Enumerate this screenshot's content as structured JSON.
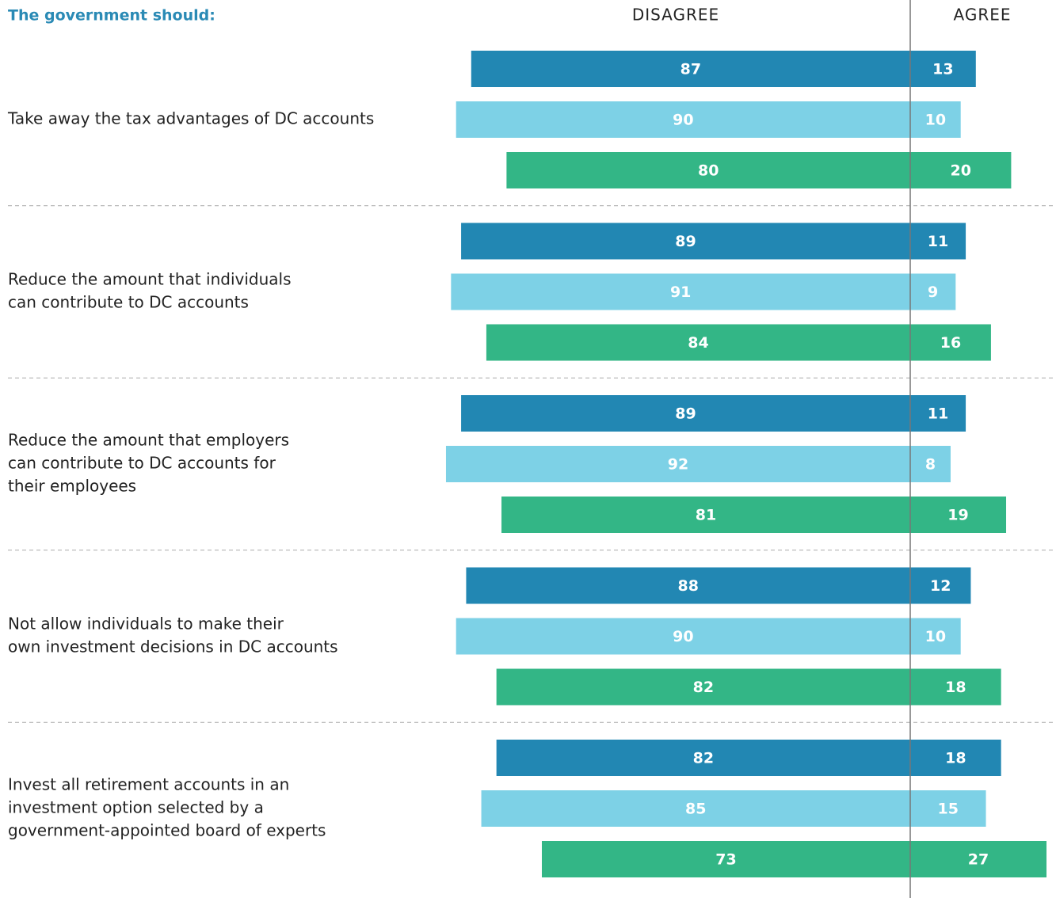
{
  "chart_data": {
    "type": "diverging_bar",
    "title": "The government should:",
    "left_label": "DISAGREE",
    "right_label": "AGREE",
    "categories": [
      [
        "Take away the tax advantages of DC accounts"
      ],
      [
        "Reduce the amount that individuals",
        "can contribute to DC accounts"
      ],
      [
        "Reduce the amount that employers",
        "can contribute to DC accounts for",
        "their employees"
      ],
      [
        "Not allow individuals to make their",
        "own investment decisions in DC accounts"
      ],
      [
        "Invest all retirement accounts in an",
        "investment option selected by a",
        "government-appointed board of experts"
      ]
    ],
    "series": [
      {
        "color": "#2287b3",
        "disagree": [
          87,
          89,
          89,
          88,
          82
        ],
        "agree": [
          13,
          11,
          11,
          12,
          18
        ]
      },
      {
        "color": "#7dd1e6",
        "disagree": [
          90,
          91,
          92,
          90,
          85
        ],
        "agree": [
          10,
          9,
          8,
          10,
          15
        ]
      },
      {
        "color": "#33b686",
        "disagree": [
          80,
          84,
          81,
          82,
          73
        ],
        "agree": [
          20,
          16,
          19,
          18,
          27
        ]
      }
    ]
  }
}
